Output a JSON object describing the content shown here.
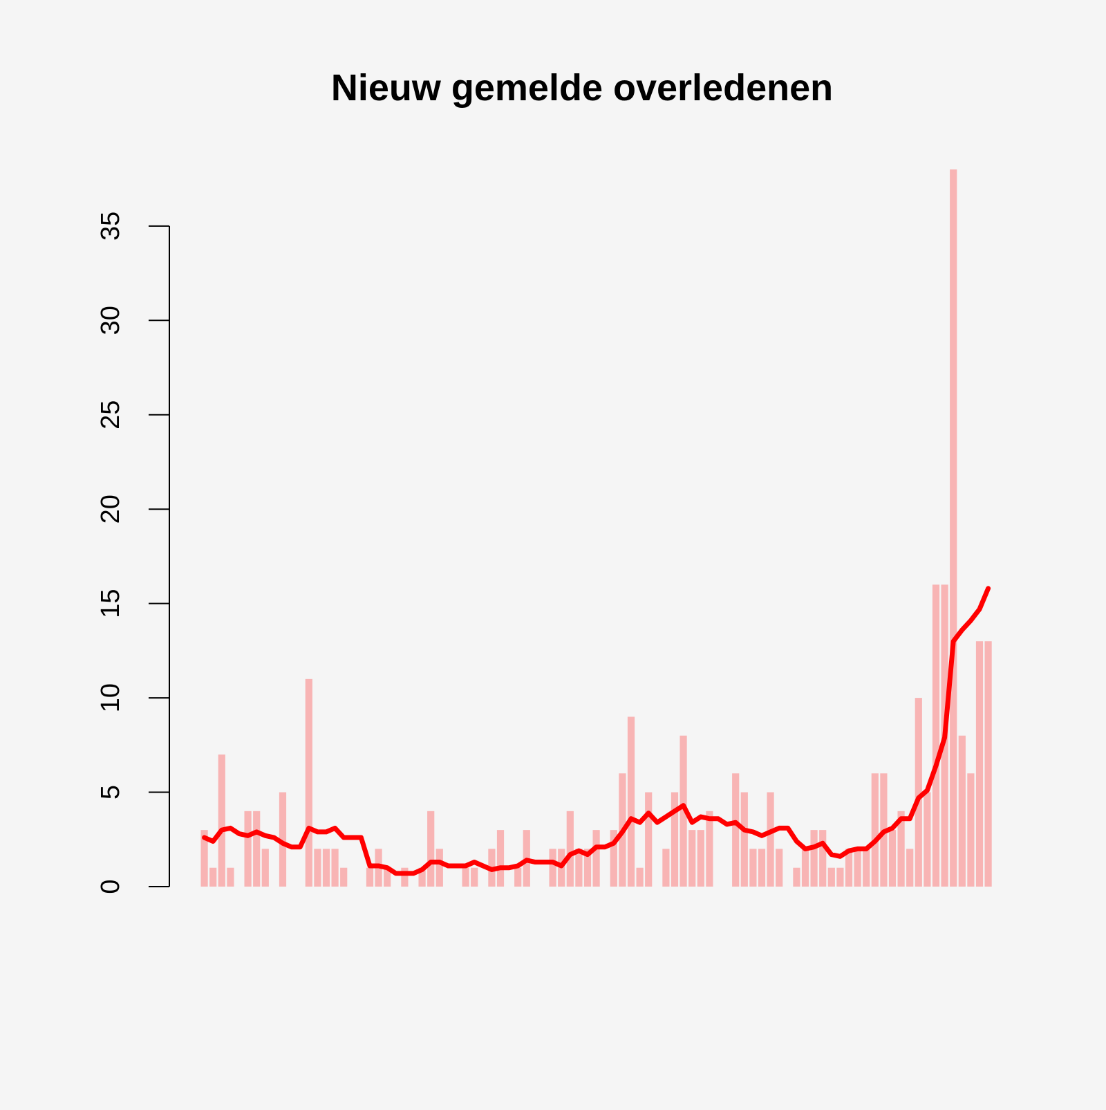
{
  "chart_data": {
    "type": "bar",
    "title": "Nieuw gemelde overledenen",
    "xlabel": "",
    "ylabel": "",
    "ylim": [
      0,
      38
    ],
    "yticks": [
      0,
      5,
      10,
      15,
      20,
      25,
      30,
      35
    ],
    "bar_color": "#f8b4b4",
    "line_color": "#ff0000",
    "background": "#f5f5f5",
    "series": [
      {
        "type": "bar",
        "values": [
          3,
          1,
          7,
          1,
          0,
          4,
          4,
          2,
          0,
          5,
          0,
          0,
          11,
          2,
          2,
          2,
          1,
          0,
          0,
          1,
          2,
          1,
          0,
          1,
          0,
          1,
          4,
          2,
          0,
          0,
          1,
          1,
          0,
          2,
          3,
          0,
          1,
          3,
          0,
          0,
          2,
          2,
          4,
          2,
          2,
          3,
          0,
          3,
          6,
          9,
          1,
          5,
          0,
          2,
          5,
          8,
          3,
          3,
          4,
          0,
          0,
          6,
          5,
          2,
          2,
          5,
          2,
          0,
          1,
          2,
          3,
          3,
          1,
          1,
          2,
          2,
          2,
          6,
          6,
          3,
          4,
          2,
          10,
          5,
          16,
          16,
          38,
          8,
          6,
          13,
          13
        ]
      },
      {
        "type": "line",
        "values": [
          2.6,
          2.4,
          3.0,
          3.1,
          2.8,
          2.7,
          2.9,
          2.7,
          2.6,
          2.3,
          2.1,
          2.1,
          3.1,
          2.9,
          2.9,
          3.1,
          2.6,
          2.6,
          2.6,
          1.1,
          1.1,
          1.0,
          0.7,
          0.7,
          0.7,
          0.9,
          1.3,
          1.3,
          1.1,
          1.1,
          1.1,
          1.3,
          1.1,
          0.9,
          1.0,
          1.0,
          1.1,
          1.4,
          1.3,
          1.3,
          1.3,
          1.1,
          1.7,
          1.9,
          1.7,
          2.1,
          2.1,
          2.3,
          2.9,
          3.6,
          3.4,
          3.9,
          3.4,
          3.7,
          4.0,
          4.3,
          3.4,
          3.7,
          3.6,
          3.6,
          3.3,
          3.4,
          3.0,
          2.9,
          2.7,
          2.9,
          3.1,
          3.1,
          2.4,
          2.0,
          2.1,
          2.3,
          1.7,
          1.6,
          1.9,
          2.0,
          2.0,
          2.4,
          2.9,
          3.1,
          3.6,
          3.6,
          4.7,
          5.1,
          6.4,
          7.9,
          13.0,
          13.6,
          14.1,
          14.7,
          15.8
        ]
      }
    ]
  }
}
